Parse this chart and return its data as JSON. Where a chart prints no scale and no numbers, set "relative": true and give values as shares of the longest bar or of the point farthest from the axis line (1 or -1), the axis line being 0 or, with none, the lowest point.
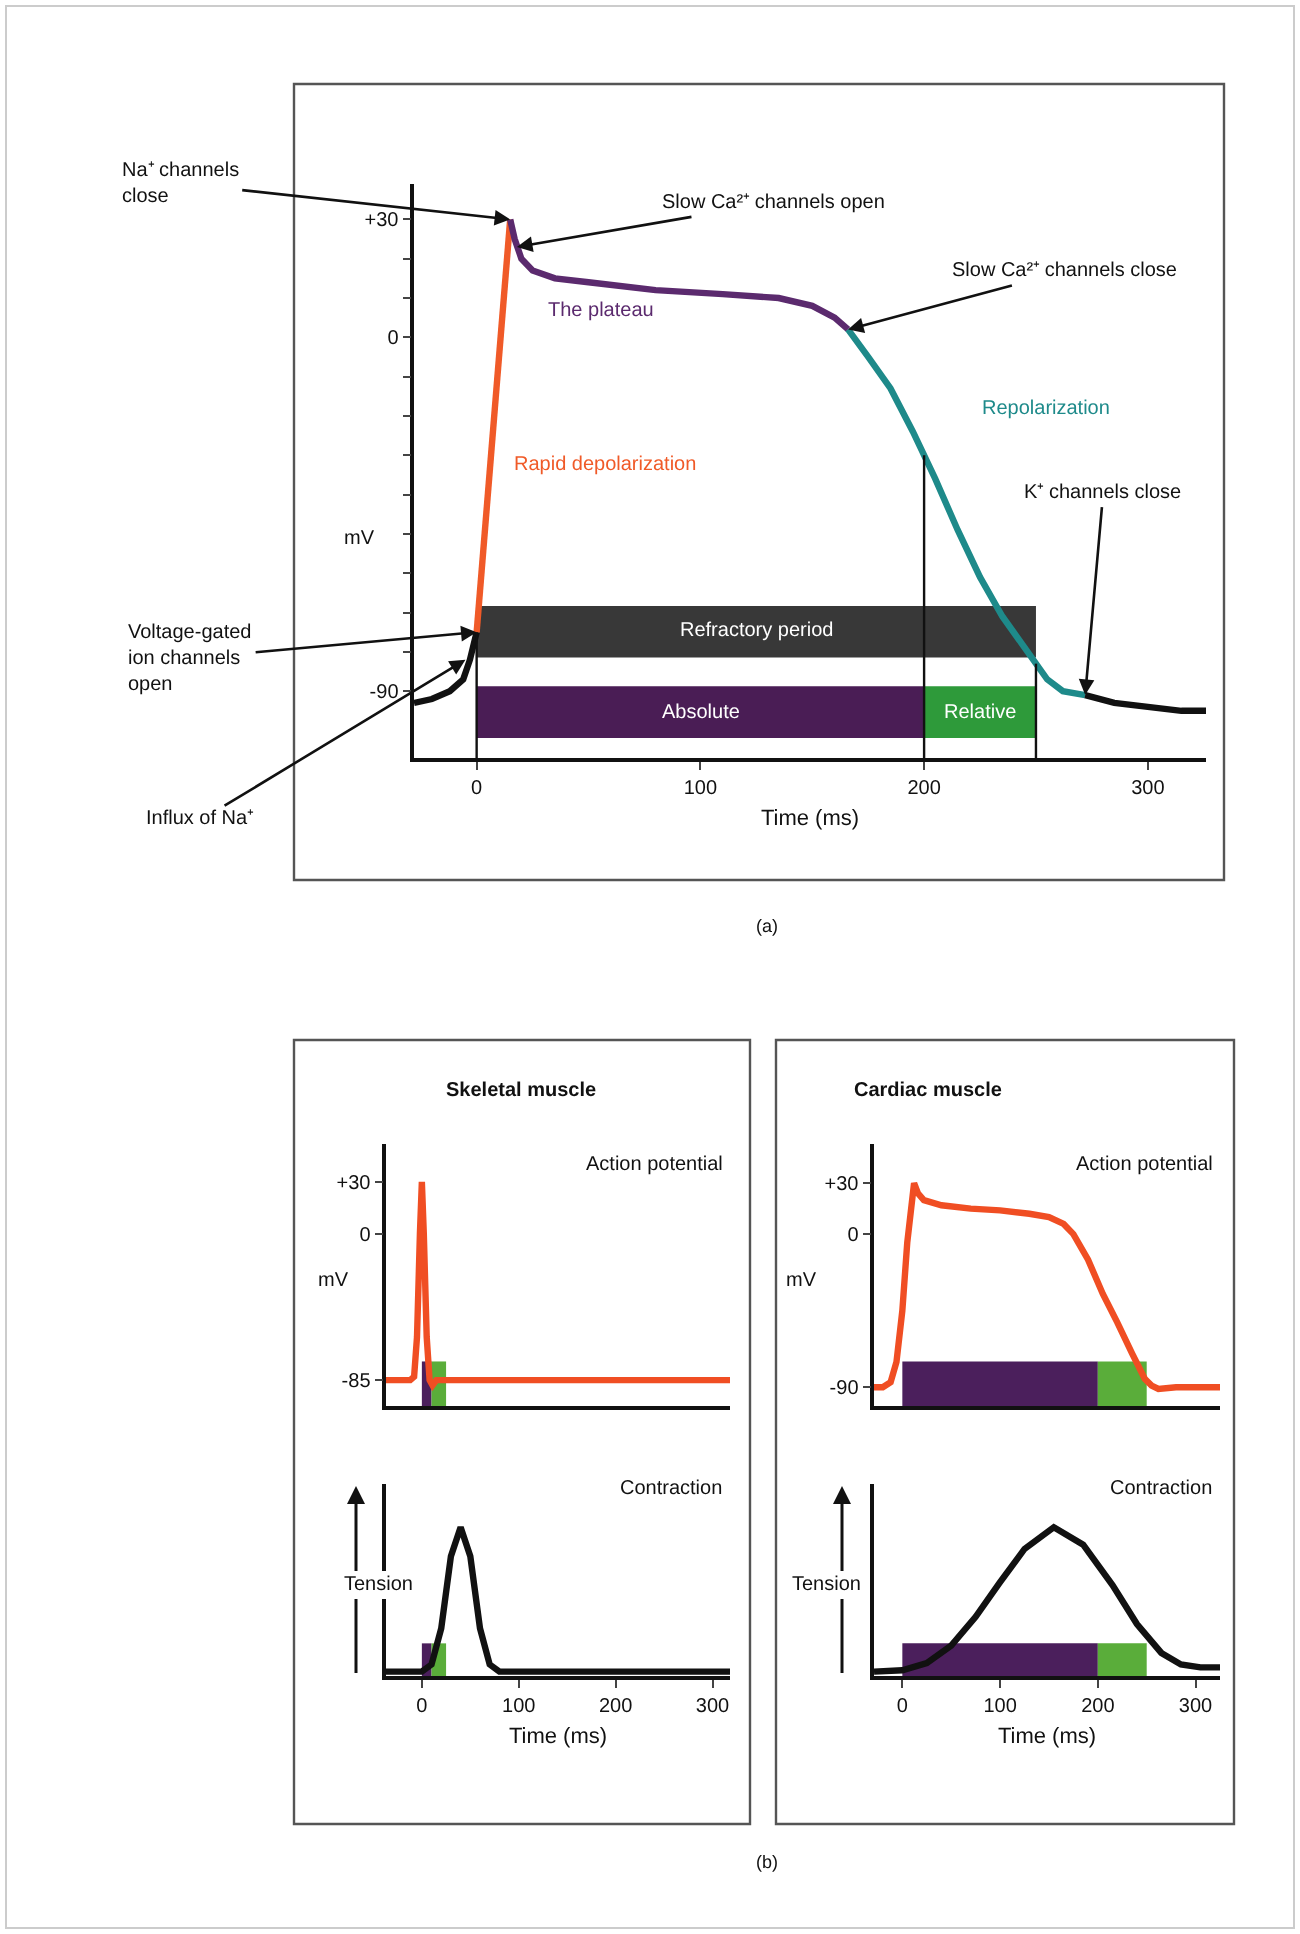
{
  "chart_data": [
    {
      "type": "line",
      "xlabel": "Time (ms)",
      "ylabel": "mV",
      "xlim": [
        -28,
        326
      ],
      "ylim": [
        -107,
        39
      ],
      "xticks": [
        0,
        100,
        200,
        300
      ],
      "yticks": [
        -90,
        {
          "value": -80,
          "label": null
        },
        {
          "value": -70,
          "label": null
        },
        {
          "value": -60,
          "label": null
        },
        {
          "value": -50,
          "label": null
        },
        {
          "value": -40,
          "label": null
        },
        {
          "value": -30,
          "label": null
        },
        {
          "value": -20,
          "label": null
        },
        {
          "value": -10,
          "label": null
        },
        0,
        {
          "value": 10,
          "label": null
        },
        {
          "value": 20,
          "label": null
        },
        {
          "value": 30,
          "label": "+30"
        }
      ],
      "series": [
        {
          "color": "#111111",
          "x": [
            -28,
            -20,
            -12,
            -6,
            -3,
            0
          ],
          "values": [
            -93,
            -92,
            -90,
            -87,
            -82,
            -75
          ]
        },
        {
          "name": "Rapid depolarization",
          "color": "#f05a28",
          "x": [
            0,
            15
          ],
          "values": [
            -75,
            30
          ]
        },
        {
          "name": "The plateau",
          "color": "#5b2a6e",
          "x": [
            15,
            17,
            20,
            25,
            35,
            50,
            80,
            110,
            135,
            150,
            160,
            166
          ],
          "values": [
            30,
            25,
            20,
            17,
            15,
            14,
            12,
            11,
            10,
            8,
            5,
            2
          ]
        },
        {
          "name": "Repolarization",
          "color": "#1e8a8a",
          "x": [
            166,
            175,
            185,
            195,
            205,
            215,
            225,
            235,
            245,
            255,
            262,
            272
          ],
          "values": [
            2,
            -5,
            -13,
            -24,
            -36,
            -49,
            -61,
            -71,
            -79,
            -87,
            -90,
            -91
          ]
        },
        {
          "color": "#111111",
          "x": [
            272,
            285,
            300,
            315,
            326
          ],
          "values": [
            -91,
            -93,
            -94,
            -95,
            -95
          ]
        }
      ],
      "annotations": [
        {
          "text": "Na⁺ channels\nclose",
          "x": 15,
          "y": 30
        },
        {
          "text": "Slow Ca²⁺ channels open",
          "x": 18,
          "y": 23
        },
        {
          "text": "Slow Ca²⁺ channels close",
          "x": 166,
          "y": 2
        },
        {
          "text": "K⁺ channels close",
          "x": 272,
          "y": -91
        },
        {
          "text": "Voltage-gated\nion channels\nopen",
          "x": 0,
          "y": -75
        },
        {
          "text": "Influx of Na⁺",
          "x": -5,
          "y": -82
        },
        "(a)"
      ],
      "bands": [
        {
          "axis": "x",
          "from": 0,
          "to": 250,
          "label": "Refractory period",
          "color": "#383838"
        },
        {
          "axis": "x",
          "from": 0,
          "to": 200,
          "label": "Absolute",
          "color": "#4a1d55"
        },
        {
          "axis": "x",
          "from": 200,
          "to": 250,
          "label": "Relative",
          "color": "#2e9a3a"
        }
      ],
      "ref_lines": [
        {
          "axis": "x",
          "value": 0,
          "color": "#111111"
        },
        {
          "axis": "x",
          "value": 200,
          "color": "#111111"
        },
        {
          "axis": "x",
          "value": 250,
          "color": "#111111"
        }
      ]
    },
    {
      "type": "line",
      "title": "Skeletal muscle",
      "subtitle": "Action potential",
      "ylabel": "mV",
      "xlim": [
        -37,
        318
      ],
      "ylim": [
        -100,
        52
      ],
      "yticks": [
        -85,
        0,
        {
          "value": 30,
          "label": "+30"
        }
      ],
      "tick_labels": "y",
      "series": [
        {
          "color": "#f04e23",
          "x": [
            -37,
            -12,
            -8,
            -5,
            -2,
            0,
            2,
            5,
            8,
            11,
            15,
            318
          ],
          "values": [
            -85,
            -85,
            -83,
            -60,
            0,
            30,
            0,
            -60,
            -85,
            -88,
            -85,
            -85
          ]
        }
      ],
      "bands": [
        {
          "axis": "x",
          "from": 0,
          "to": 10,
          "color": "#4b1f5c"
        },
        {
          "axis": "x",
          "from": 10,
          "to": 25,
          "color": "#5aad3a"
        }
      ]
    },
    {
      "type": "line",
      "subtitle": "Contraction",
      "xlabel": "Time (ms)",
      "ylabel": "Tension",
      "relative": true,
      "xlim": [
        -37,
        318
      ],
      "xticks": [
        0,
        100,
        200,
        300
      ],
      "tick_labels": "x",
      "series": [
        {
          "color": "#111111",
          "x": [
            -37,
            0,
            10,
            20,
            30,
            40,
            50,
            60,
            70,
            80,
            318
          ],
          "values": [
            0,
            0,
            0.05,
            0.3,
            0.8,
            1,
            0.8,
            0.3,
            0.05,
            0,
            0
          ]
        }
      ],
      "bands": [
        {
          "axis": "x",
          "from": 0,
          "to": 10,
          "color": "#4b1f5c"
        },
        {
          "axis": "x",
          "from": 10,
          "to": 25,
          "color": "#5aad3a"
        }
      ]
    },
    {
      "type": "line",
      "title": "Cardiac muscle",
      "subtitle": "Action potential",
      "ylabel": "mV",
      "xlim": [
        -29,
        325
      ],
      "ylim": [
        -101,
        53
      ],
      "yticks": [
        -90,
        0,
        {
          "value": 30,
          "label": "+30"
        }
      ],
      "tick_labels": "y",
      "series": [
        {
          "color": "#f04e23",
          "x": [
            -29,
            -20,
            -12,
            -6,
            0,
            5,
            12,
            16,
            22,
            40,
            70,
            100,
            130,
            150,
            165,
            175,
            190,
            205,
            220,
            235,
            248,
            255,
            262,
            280,
            325
          ],
          "values": [
            -90,
            -90,
            -87,
            -75,
            -45,
            -5,
            30,
            24,
            20,
            17,
            15,
            14,
            12,
            10,
            6,
            0,
            -15,
            -35,
            -52,
            -70,
            -85,
            -89,
            -91,
            -90,
            -90
          ]
        }
      ],
      "bands": [
        {
          "axis": "x",
          "from": 0,
          "to": 200,
          "color": "#4b1f5c"
        },
        {
          "axis": "x",
          "from": 200,
          "to": 250,
          "color": "#5aad3a"
        }
      ]
    },
    {
      "type": "line",
      "subtitle": "Contraction",
      "xlabel": "Time (ms)",
      "ylabel": "Tension",
      "relative": true,
      "xlim": [
        -29,
        325
      ],
      "xticks": [
        0,
        100,
        200,
        300
      ],
      "tick_labels": "x",
      "series": [
        {
          "color": "#111111",
          "x": [
            -29,
            0,
            25,
            50,
            75,
            100,
            125,
            155,
            185,
            215,
            240,
            265,
            285,
            305,
            325
          ],
          "values": [
            0,
            0.01,
            0.06,
            0.18,
            0.38,
            0.62,
            0.85,
            1,
            0.88,
            0.6,
            0.33,
            0.13,
            0.05,
            0.03,
            0.03
          ]
        }
      ],
      "bands": [
        {
          "axis": "x",
          "from": 0,
          "to": 200,
          "color": "#4b1f5c"
        },
        {
          "axis": "x",
          "from": 200,
          "to": 250,
          "color": "#5aad3a"
        }
      ],
      "annotations": [
        "(b)"
      ]
    }
  ]
}
